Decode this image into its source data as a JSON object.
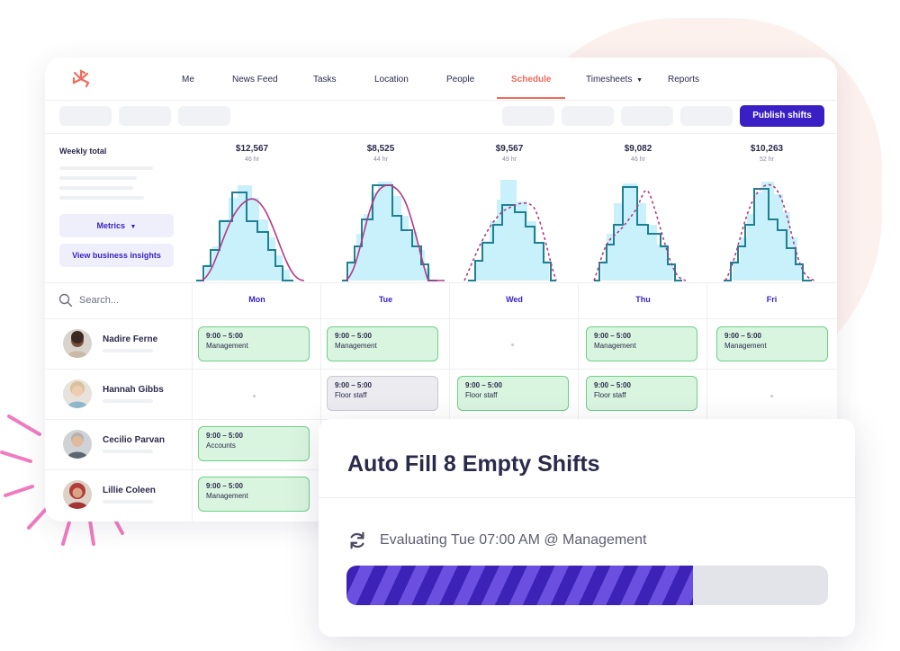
{
  "nav": {
    "items": [
      "Me",
      "News Feed",
      "Tasks",
      "Location",
      "People",
      "Schedule",
      "Timesheets",
      "Reports"
    ],
    "active": "Schedule",
    "dropdown_icon": "caret-down-icon"
  },
  "toolbar": {
    "publish_label": "Publish shifts"
  },
  "metrics_panel": {
    "title": "Weekly total",
    "metrics_label": "Metrics",
    "insights_label": "View business insights"
  },
  "days": [
    {
      "name": "Mon",
      "cost": "$12,567",
      "hours": "46 hr"
    },
    {
      "name": "Tue",
      "cost": "$8,525",
      "hours": "44 hr"
    },
    {
      "name": "Wed",
      "cost": "$9,567",
      "hours": "49 hr"
    },
    {
      "name": "Thu",
      "cost": "$9,082",
      "hours": "46 hr"
    },
    {
      "name": "Fri",
      "cost": "$10,263",
      "hours": "52 hr"
    }
  ],
  "search": {
    "placeholder": "Search..."
  },
  "employees": [
    {
      "name": "Nadire Ferne",
      "shifts": [
        {
          "time": "9:00 – 5:00",
          "role": "Management"
        },
        {
          "time": "9:00 – 5:00",
          "role": "Management"
        },
        null,
        {
          "time": "9:00 – 5:00",
          "role": "Management"
        },
        {
          "time": "9:00 – 5:00",
          "role": "Management"
        }
      ]
    },
    {
      "name": "Hannah Gibbs",
      "shifts": [
        null,
        {
          "time": "9:00 – 5:00",
          "role": "Floor staff",
          "unpublished": true
        },
        {
          "time": "9:00 – 5:00",
          "role": "Floor staff"
        },
        {
          "time": "9:00 – 5:00",
          "role": "Floor staff"
        },
        null
      ]
    },
    {
      "name": "Cecilio Parvan",
      "shifts": [
        {
          "time": "9:00 – 5:00",
          "role": "Accounts"
        }
      ]
    },
    {
      "name": "Lillie Coleen",
      "shifts": [
        {
          "time": "9:00 – 5:00",
          "role": "Management"
        }
      ]
    }
  ],
  "modal": {
    "title": "Auto Fill 8 Empty Shifts",
    "status": "Evaluating Tue 07:00 AM @ Management",
    "progress": 0.72,
    "icon": "sync-icon"
  },
  "colors": {
    "accent": "#3a20c4",
    "brand": "#f06a5e",
    "shift_fill": "#d9f5df",
    "shift_border": "#6fcf87",
    "chart_step": "#1f7f93",
    "chart_fill": "#c8f1fb",
    "chart_forecast": "#b43a86"
  }
}
